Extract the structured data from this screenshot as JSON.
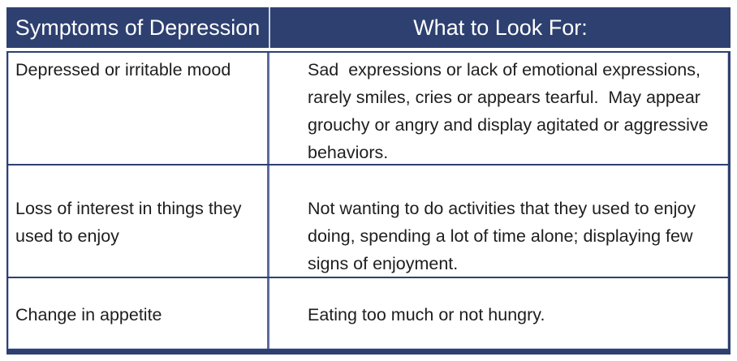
{
  "table": {
    "header": {
      "col1": "Symptoms of Depression",
      "col2": "What to Look For:"
    },
    "rows": [
      {
        "symptom": "Depressed or irritable mood",
        "look_for": "Sad  expressions or lack of emotional expressions, rarely smiles, cries or appears tearful.  May appear grouchy or angry and display agitated or aggressive behaviors."
      },
      {
        "symptom": "Loss of interest in things they used to enjoy",
        "look_for": "Not wanting to do activities that they used to enjoy doing, spending a lot of time alone; displaying few signs of enjoyment."
      },
      {
        "symptom": "Change in appetite",
        "look_for": "Eating too much or not hungry."
      }
    ],
    "colors": {
      "header_bg": "#2e4070",
      "header_text": "#ffffff",
      "header_divider": "#ccd4e8",
      "row_border": "#2e4070",
      "column_divider": "#5c6b9e",
      "body_text": "#1e1e1e"
    }
  }
}
